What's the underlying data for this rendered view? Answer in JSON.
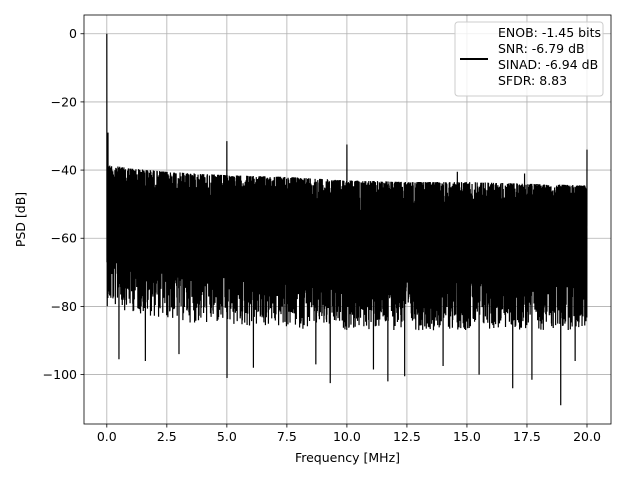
{
  "chart_data": {
    "type": "line",
    "xlabel": "Frequency [MHz]",
    "ylabel": "PSD [dB]",
    "xlim": [
      -0.95,
      21.0
    ],
    "ylim": [
      -114.5,
      5.5
    ],
    "xticks": [
      0.0,
      2.5,
      5.0,
      7.5,
      10.0,
      12.5,
      15.0,
      17.5,
      20.0
    ],
    "xtick_labels": [
      "0.0",
      "2.5",
      "5.0",
      "7.5",
      "10.0",
      "12.5",
      "15.0",
      "17.5",
      "20.0"
    ],
    "yticks": [
      0,
      -20,
      -40,
      -60,
      -80,
      -100
    ],
    "ytick_labels": [
      "0",
      "−20",
      "−40",
      "−60",
      "−80",
      "−100"
    ],
    "grid": true,
    "legend_position": "top-right",
    "series": [
      {
        "name": "ENOB: -1.45 bits\nSNR: -6.79 dB\nSINAD: -6.94 dB\nSFDR: 8.83",
        "color": "#000000",
        "x_range": [
          0.0,
          20.0
        ],
        "noise_ceiling": [
          [
            0.0,
            -37.5
          ],
          [
            1.0,
            -38.5
          ],
          [
            2.5,
            -39.5
          ],
          [
            5.0,
            -40.5
          ],
          [
            7.5,
            -41.0
          ],
          [
            10.0,
            -42.0
          ],
          [
            12.5,
            -42.5
          ],
          [
            15.0,
            -42.5
          ],
          [
            17.5,
            -43.0
          ],
          [
            20.0,
            -43.5
          ]
        ],
        "noise_floor": [
          [
            0.0,
            -78
          ],
          [
            2.5,
            -82
          ],
          [
            5.0,
            -84
          ],
          [
            10.0,
            -85
          ],
          [
            15.0,
            -85
          ],
          [
            20.0,
            -85
          ]
        ],
        "peaks": [
          {
            "x": 0.0,
            "y": 0.0
          },
          {
            "x": 0.05,
            "y": -29.0
          },
          {
            "x": 5.0,
            "y": -31.5
          },
          {
            "x": 10.0,
            "y": -32.5
          },
          {
            "x": 20.0,
            "y": -34.0
          },
          {
            "x": 14.6,
            "y": -40.5
          },
          {
            "x": 17.4,
            "y": -41.0
          }
        ],
        "dips": [
          {
            "x": 0.5,
            "y": -95.5
          },
          {
            "x": 1.6,
            "y": -96.0
          },
          {
            "x": 3.0,
            "y": -94.0
          },
          {
            "x": 5.0,
            "y": -101.0
          },
          {
            "x": 6.1,
            "y": -98.0
          },
          {
            "x": 8.7,
            "y": -97.0
          },
          {
            "x": 9.3,
            "y": -102.5
          },
          {
            "x": 11.1,
            "y": -98.5
          },
          {
            "x": 11.7,
            "y": -102.0
          },
          {
            "x": 12.4,
            "y": -100.5
          },
          {
            "x": 14.0,
            "y": -97.5
          },
          {
            "x": 15.5,
            "y": -100.0
          },
          {
            "x": 16.9,
            "y": -104.0
          },
          {
            "x": 17.7,
            "y": -101.5
          },
          {
            "x": 18.9,
            "y": -109.0
          },
          {
            "x": 19.5,
            "y": -96.0
          }
        ]
      }
    ]
  }
}
